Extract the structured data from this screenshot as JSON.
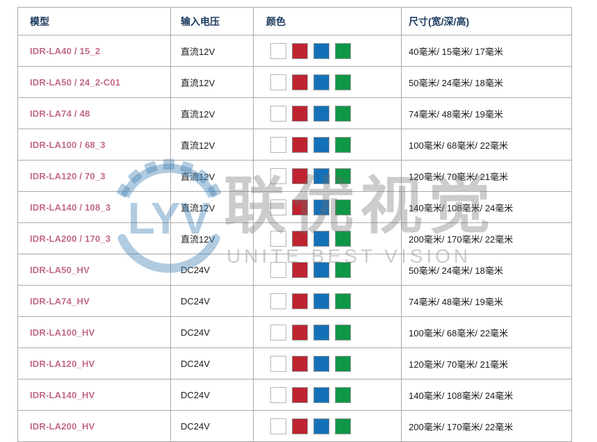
{
  "table": {
    "columns": [
      {
        "label": "模型"
      },
      {
        "label": "输入电压"
      },
      {
        "label": "颜色"
      },
      {
        "label": "尺寸(宽/深/高)"
      }
    ],
    "rows": [
      {
        "model": "IDR-LA40 / 15_2",
        "voltage": "直流12V",
        "colors": [
          "white",
          "red",
          "blue",
          "green"
        ],
        "size": "40毫米/ 15毫米/ 17毫米"
      },
      {
        "model": "IDR-LA50 / 24_2-C01",
        "voltage": "直流12V",
        "colors": [
          "white",
          "red",
          "blue",
          "green"
        ],
        "size": "50毫米/ 24毫米/ 18毫米"
      },
      {
        "model": "IDR-LA74 / 48",
        "voltage": "直流12V",
        "colors": [
          "white",
          "red",
          "blue",
          "green"
        ],
        "size": "74毫米/ 48毫米/ 19毫米"
      },
      {
        "model": "IDR-LA100 / 68_3",
        "voltage": "直流12V",
        "colors": [
          "white",
          "red",
          "blue",
          "green"
        ],
        "size": "100毫米/ 68毫米/ 22毫米"
      },
      {
        "model": "IDR-LA120 / 70_3",
        "voltage": "直流12V",
        "colors": [
          "white",
          "red",
          "blue",
          "green"
        ],
        "size": "120毫米/ 70毫米/ 21毫米"
      },
      {
        "model": "IDR-LA140 / 108_3",
        "voltage": "直流12V",
        "colors": [
          "white",
          "red",
          "blue",
          "green"
        ],
        "size": "140毫米/ 108毫米/ 24毫米"
      },
      {
        "model": "IDR-LA200 / 170_3",
        "voltage": "直流12V",
        "colors": [
          "white",
          "red",
          "blue",
          "green"
        ],
        "size": "200毫米/ 170毫米/ 22毫米"
      },
      {
        "model": "IDR-LA50_HV",
        "voltage": "DC24V",
        "colors": [
          "white",
          "red",
          "blue",
          "green"
        ],
        "size": "50毫米/ 24毫米/ 18毫米"
      },
      {
        "model": "IDR-LA74_HV",
        "voltage": "DC24V",
        "colors": [
          "white",
          "red",
          "blue",
          "green"
        ],
        "size": "74毫米/ 48毫米/ 19毫米"
      },
      {
        "model": "IDR-LA100_HV",
        "voltage": "DC24V",
        "colors": [
          "white",
          "red",
          "blue",
          "green"
        ],
        "size": "100毫米/ 68毫米/ 22毫米"
      },
      {
        "model": "IDR-LA120_HV",
        "voltage": "DC24V",
        "colors": [
          "white",
          "red",
          "blue",
          "green"
        ],
        "size": "120毫米/ 70毫米/ 21毫米"
      },
      {
        "model": "IDR-LA140_HV",
        "voltage": "DC24V",
        "colors": [
          "white",
          "red",
          "blue",
          "green"
        ],
        "size": "140毫米/ 108毫米/ 24毫米"
      },
      {
        "model": "IDR-LA200_HV",
        "voltage": "DC24V",
        "colors": [
          "white",
          "red",
          "blue",
          "green"
        ],
        "size": "200毫米/ 170毫米/ 22毫米"
      }
    ]
  },
  "watermark": {
    "logo_text": "LYV",
    "cn_text": "联优视觉",
    "en_text": "UNITE BEST VISION"
  },
  "colors": {
    "page-bg": "#ffffff",
    "border-outer": "#8f8f8f",
    "border-inner": "#aaaaaa",
    "header-text": "#1c3a5e",
    "model-link": "#c2688c",
    "body-text": "#1b1b1b",
    "swatch-border": "#999999",
    "swatch-white": "#ffffff",
    "swatch-red": "#bd2430",
    "swatch-blue": "#1471b8",
    "swatch-green": "#0f9747",
    "wm-blue": "rgba(70,130,180,0.42)",
    "wm-gray": "rgba(110,110,110,0.35)"
  }
}
